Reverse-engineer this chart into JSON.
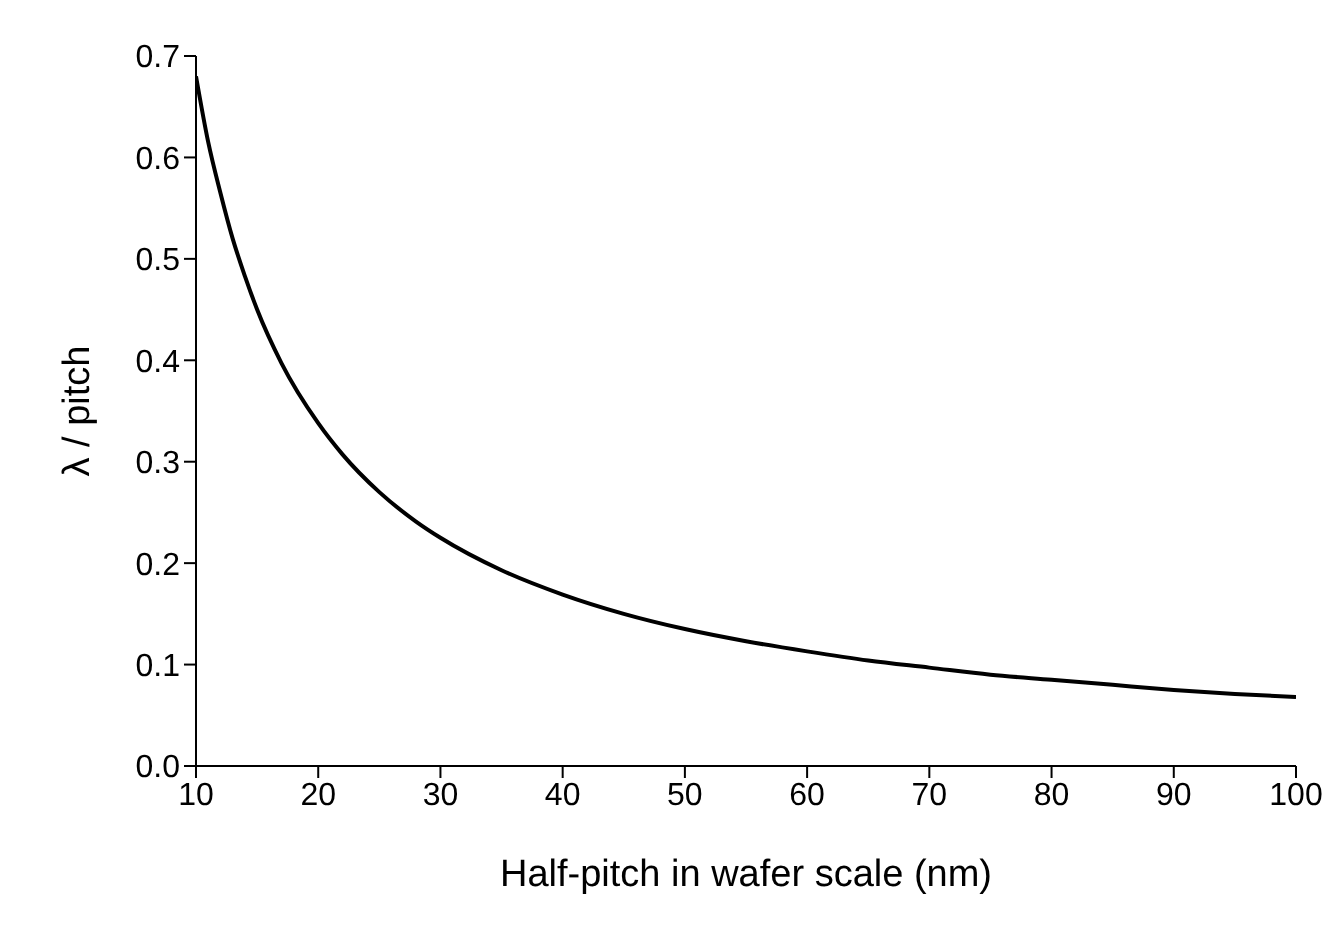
{
  "chart_data": {
    "type": "line",
    "xlabel": "Half-pitch in wafer scale (nm)",
    "ylabel": "λ / pitch",
    "x": [
      10,
      11,
      12,
      13,
      14,
      15,
      17,
      20,
      22,
      25,
      28,
      30,
      35,
      40,
      45,
      50,
      55,
      60,
      65,
      70,
      75,
      80,
      85,
      90,
      95,
      100
    ],
    "series": [
      {
        "color": "#000000",
        "values": [
          0.68,
          0.615,
          0.565,
          0.52,
          0.483,
          0.45,
          0.397,
          0.338,
          0.307,
          0.27,
          0.241,
          0.225,
          0.193,
          0.169,
          0.15,
          0.135,
          0.123,
          0.113,
          0.104,
          0.097,
          0.09,
          0.085,
          0.08,
          0.075,
          0.071,
          0.068
        ]
      }
    ],
    "xlim": [
      10,
      100
    ],
    "xticks": [
      10,
      20,
      30,
      40,
      50,
      60,
      70,
      80,
      90,
      100
    ],
    "ylim": [
      0,
      0.7
    ],
    "yticks": [
      {
        "value": 0,
        "label": "0.0"
      },
      0.1,
      0.2,
      0.3,
      0.4,
      0.5,
      0.6,
      0.7
    ],
    "grid": false,
    "legend": false,
    "marker": "none",
    "line_style": "solid"
  }
}
